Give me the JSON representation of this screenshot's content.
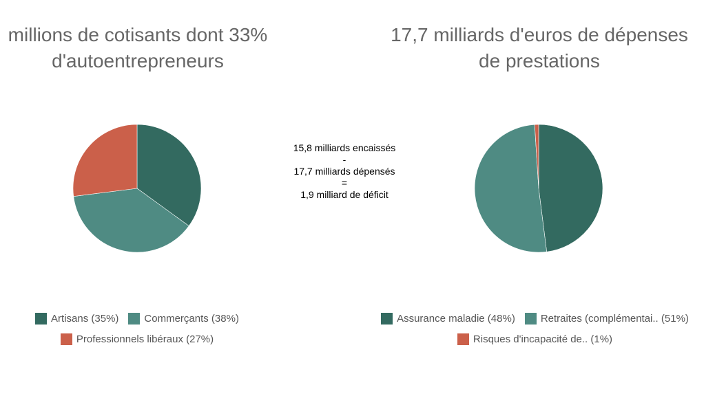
{
  "colors": {
    "dark_teal": "#336a60",
    "teal": "#4f8b83",
    "orange": "#cb604a"
  },
  "center_note": {
    "line1": "15,8 milliards encaissés",
    "line2": "-",
    "line3": "17,7 milliards dépensés",
    "line4": "=",
    "line5": "1,9 milliard de déficit"
  },
  "chart_data": [
    {
      "type": "pie",
      "title_line1": "millions de cotisants dont 33%",
      "title_line2": "d'autoentrepreneurs",
      "categories": [
        "Artisans",
        "Commerçants",
        "Professionnels libéraux"
      ],
      "values": [
        35,
        38,
        27
      ],
      "legend_labels": [
        "Artisans (35%)",
        "Commerçants (38%)",
        "Professionnels libéraux (27%)"
      ],
      "colors": [
        "#336a60",
        "#4f8b83",
        "#cb604a"
      ],
      "legend": "bottom"
    },
    {
      "type": "pie",
      "title_line1": "17,7 milliards d'euros de dépenses",
      "title_line2": "de prestations",
      "categories": [
        "Assurance maladie",
        "Retraites (complémentai..",
        "Risques d'incapacité de.."
      ],
      "values": [
        48,
        51,
        1
      ],
      "legend_labels": [
        "Assurance maladie (48%)",
        "Retraites (complémentai.. (51%)",
        "Risques d'incapacité de.. (1%)"
      ],
      "colors": [
        "#336a60",
        "#4f8b83",
        "#cb604a"
      ],
      "legend": "bottom"
    }
  ]
}
